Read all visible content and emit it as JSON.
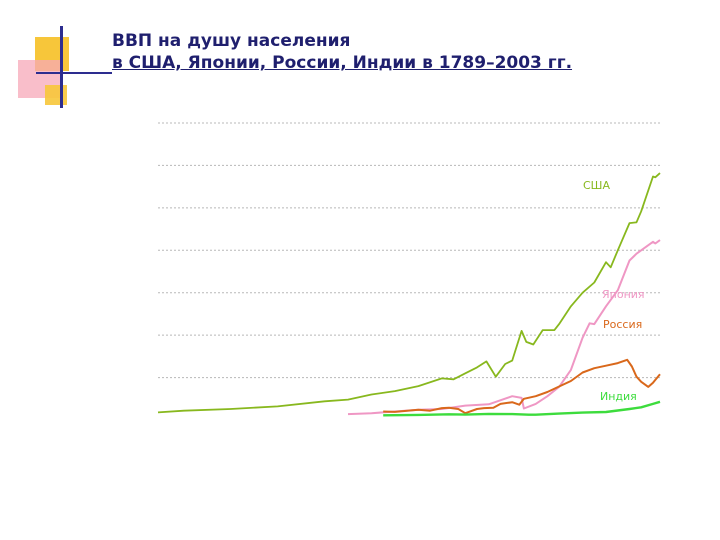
{
  "title_line1": "ВВП на душу населения",
  "title_line2": "в США, Японии, России, Индии в 1789–2003 гг.",
  "colors": {
    "title": "#1f1f6e",
    "deco_yellow": "#f7c63a",
    "deco_pink": "#f7a8b8",
    "deco_blue": "#2d2d8f",
    "usa": "#88b81e",
    "japan": "#ef97c4",
    "russia": "#d9681b",
    "india": "#3ddc3d",
    "grid": "#b8b8b8"
  },
  "chart_data": {
    "type": "line",
    "title": "ВВП на душу населения в США, Японии, России, Индии в 1789–2003 гг.",
    "ylim": [
      0,
      35000
    ],
    "grid": true,
    "x_range": [
      1789,
      2003
    ],
    "series": [
      {
        "name": "США",
        "points": [
          [
            1789,
            900
          ],
          [
            1800,
            1100
          ],
          [
            1820,
            1300
          ],
          [
            1840,
            1600
          ],
          [
            1860,
            2200
          ],
          [
            1870,
            2400
          ],
          [
            1880,
            3000
          ],
          [
            1890,
            3400
          ],
          [
            1900,
            4000
          ],
          [
            1910,
            4900
          ],
          [
            1915,
            4800
          ],
          [
            1920,
            5500
          ],
          [
            1925,
            6200
          ],
          [
            1929,
            6900
          ],
          [
            1933,
            5100
          ],
          [
            1937,
            6600
          ],
          [
            1940,
            7000
          ],
          [
            1944,
            10500
          ],
          [
            1946,
            9200
          ],
          [
            1949,
            8900
          ],
          [
            1953,
            10600
          ],
          [
            1958,
            10600
          ],
          [
            1960,
            11300
          ],
          [
            1965,
            13400
          ],
          [
            1970,
            15000
          ],
          [
            1975,
            16200
          ],
          [
            1980,
            18600
          ],
          [
            1982,
            18000
          ],
          [
            1985,
            20000
          ],
          [
            1990,
            23200
          ],
          [
            1993,
            23300
          ],
          [
            1995,
            24600
          ],
          [
            2000,
            28700
          ],
          [
            2001,
            28600
          ],
          [
            2003,
            29100
          ]
        ]
      },
      {
        "name": "Япония",
        "points": [
          [
            1870,
            700
          ],
          [
            1880,
            800
          ],
          [
            1890,
            1000
          ],
          [
            1900,
            1200
          ],
          [
            1910,
            1300
          ],
          [
            1920,
            1700
          ],
          [
            1930,
            1850
          ],
          [
            1940,
            2800
          ],
          [
            1944,
            2600
          ],
          [
            1945,
            1350
          ],
          [
            1950,
            1900
          ],
          [
            1955,
            2800
          ],
          [
            1960,
            3900
          ],
          [
            1965,
            5900
          ],
          [
            1970,
            9700
          ],
          [
            1973,
            11400
          ],
          [
            1975,
            11300
          ],
          [
            1980,
            13400
          ],
          [
            1985,
            15300
          ],
          [
            1990,
            18800
          ],
          [
            1993,
            19600
          ],
          [
            1995,
            20000
          ],
          [
            2000,
            21000
          ],
          [
            2001,
            20800
          ],
          [
            2003,
            21200
          ]
        ]
      },
      {
        "name": "Россия",
        "points": [
          [
            1885,
            1000
          ],
          [
            1890,
            950
          ],
          [
            1900,
            1200
          ],
          [
            1905,
            1100
          ],
          [
            1910,
            1400
          ],
          [
            1913,
            1450
          ],
          [
            1917,
            1300
          ],
          [
            1920,
            800
          ],
          [
            1925,
            1300
          ],
          [
            1928,
            1400
          ],
          [
            1932,
            1450
          ],
          [
            1935,
            1900
          ],
          [
            1940,
            2100
          ],
          [
            1943,
            1800
          ],
          [
            1945,
            2500
          ],
          [
            1950,
            2800
          ],
          [
            1955,
            3300
          ],
          [
            1960,
            3950
          ],
          [
            1965,
            4600
          ],
          [
            1970,
            5600
          ],
          [
            1975,
            6100
          ],
          [
            1980,
            6400
          ],
          [
            1985,
            6700
          ],
          [
            1989,
            7100
          ],
          [
            1991,
            6300
          ],
          [
            1993,
            5100
          ],
          [
            1995,
            4500
          ],
          [
            1998,
            3900
          ],
          [
            2000,
            4400
          ],
          [
            2003,
            5400
          ]
        ]
      },
      {
        "name": "Индия",
        "points": [
          [
            1885,
            550
          ],
          [
            1900,
            600
          ],
          [
            1913,
            670
          ],
          [
            1920,
            640
          ],
          [
            1930,
            720
          ],
          [
            1940,
            690
          ],
          [
            1947,
            620
          ],
          [
            1950,
            620
          ],
          [
            1960,
            750
          ],
          [
            1970,
            870
          ],
          [
            1980,
            940
          ],
          [
            1990,
            1300
          ],
          [
            1995,
            1500
          ],
          [
            2000,
            1900
          ],
          [
            2003,
            2150
          ]
        ]
      }
    ]
  }
}
